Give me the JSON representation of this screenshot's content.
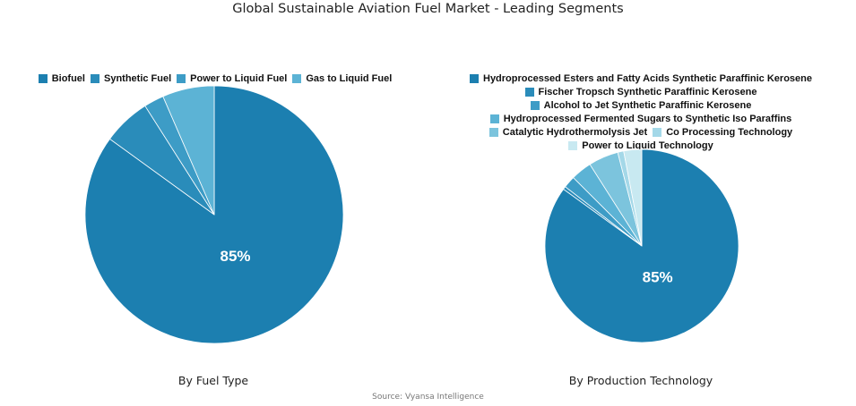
{
  "title": "Global Sustainable Aviation Fuel Market - Leading Segments",
  "source": "Source: Vyansa Intelligence",
  "chart_data": [
    {
      "type": "pie",
      "caption": "By Fuel Type",
      "center_label": "85%",
      "legend_position": "top",
      "start": "12 o'clock, clockwise",
      "slices": [
        {
          "label": "Biofuel",
          "value": 85,
          "color": "#1c7fb0"
        },
        {
          "label": "Synthetic Fuel",
          "value": 6,
          "color": "#2a8cba"
        },
        {
          "label": "Power to Liquid Fuel",
          "value": 2.5,
          "color": "#3d9cc6"
        },
        {
          "label": "Gas to Liquid Fuel",
          "value": 6.5,
          "color": "#5cb3d5"
        }
      ]
    },
    {
      "type": "pie",
      "caption": "By Production Technology",
      "center_label": "85%",
      "legend_position": "top",
      "start": "12 o'clock, clockwise",
      "slices": [
        {
          "label": "Hydroprocessed Esters and Fatty Acids Synthetic Paraffinic Kerosene",
          "value": 85,
          "color": "#1c7fb0"
        },
        {
          "label": "Fischer Tropsch Synthetic Paraffinic Kerosene",
          "value": 0.5,
          "color": "#2a8cba"
        },
        {
          "label": "Alcohol to Jet Synthetic Paraffinic Kerosene",
          "value": 2,
          "color": "#3d9cc6"
        },
        {
          "label": "Hydroprocessed Fermented Sugars to Synthetic Iso Paraffins",
          "value": 3.5,
          "color": "#5cb3d5"
        },
        {
          "label": "Catalytic Hydrothermolysis Jet",
          "value": 5,
          "color": "#7cc4dd"
        },
        {
          "label": "Co Processing Technology",
          "value": 1,
          "color": "#a4d8e8"
        },
        {
          "label": "Power to Liquid Technology",
          "value": 3,
          "color": "#c8e9f1"
        }
      ]
    }
  ]
}
